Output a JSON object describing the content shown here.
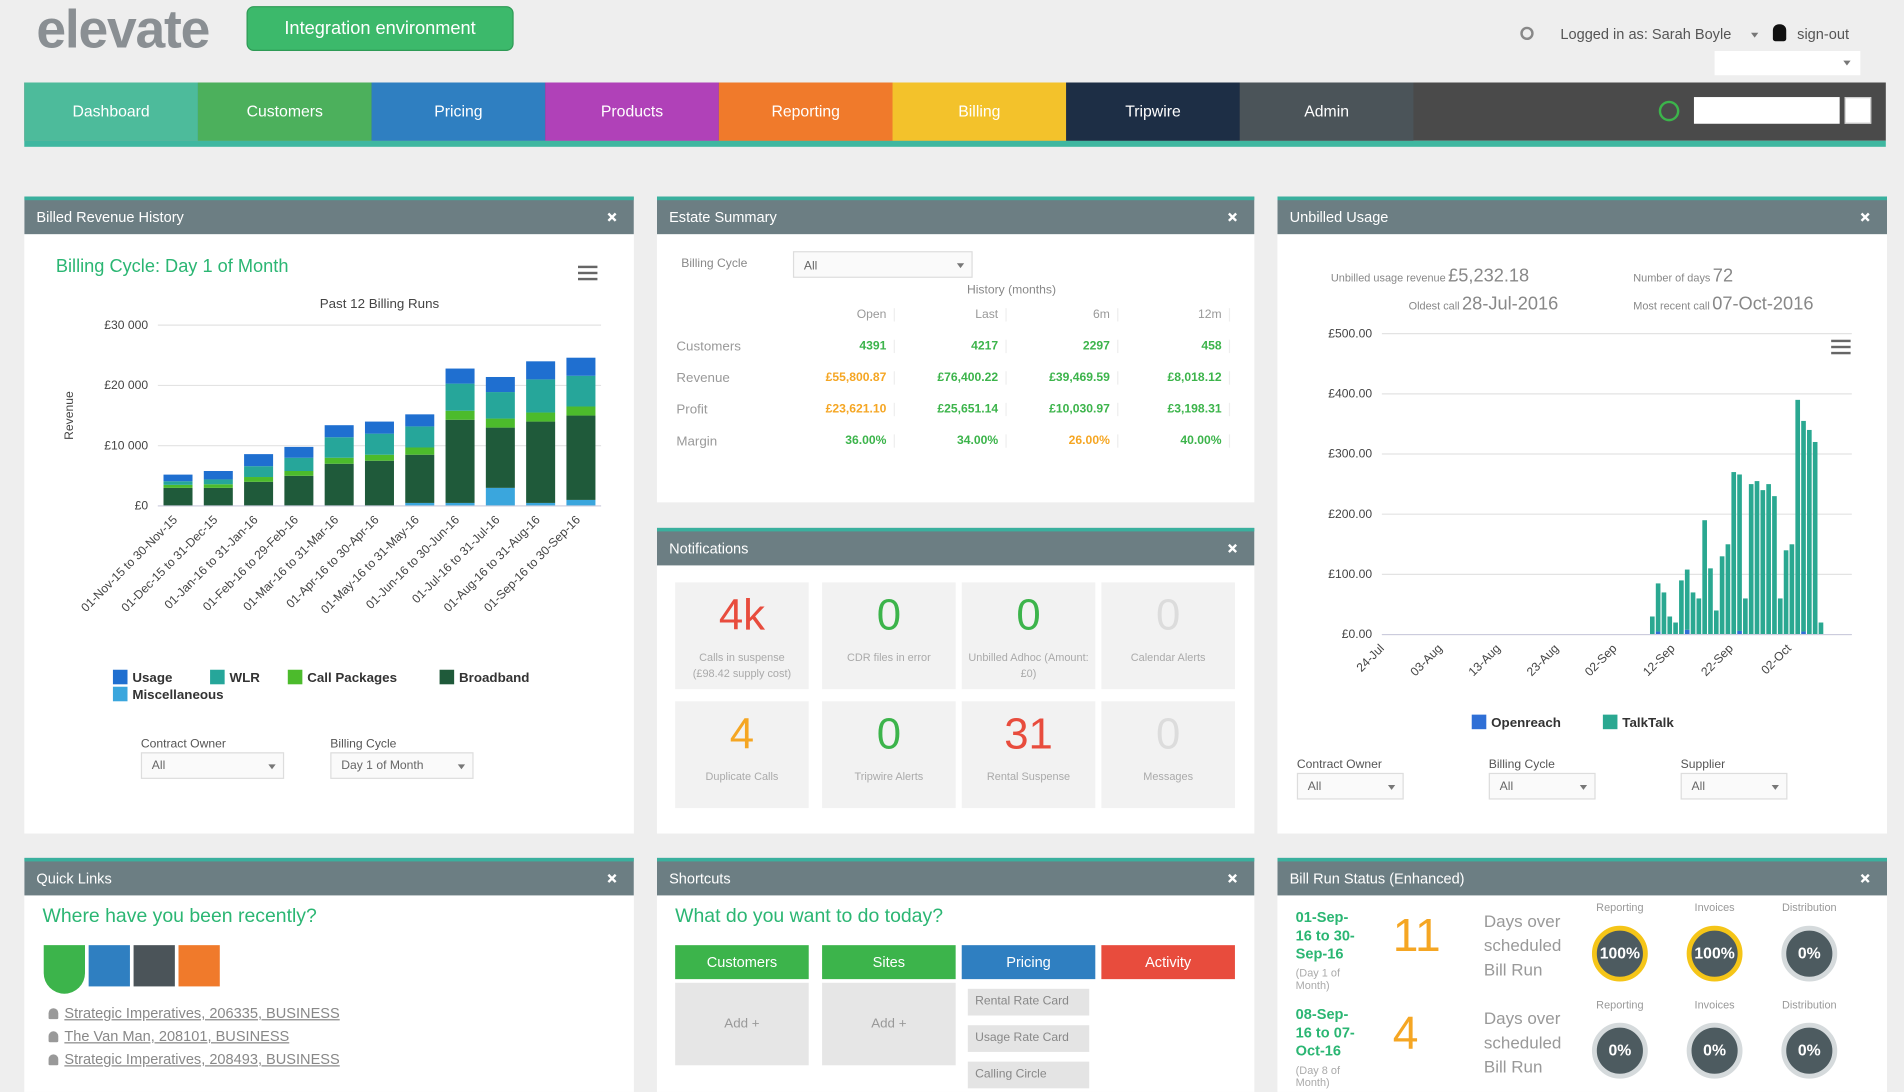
{
  "header": {
    "logo": "elevate",
    "environment": "Integration environment",
    "user": "Logged in as: Sarah Boyle",
    "signout": "sign-out"
  },
  "nav": [
    {
      "label": "Dashboard",
      "color": "#4dbb9b"
    },
    {
      "label": "Customers",
      "color": "#4cb05c"
    },
    {
      "label": "Pricing",
      "color": "#2f7fc1"
    },
    {
      "label": "Products",
      "color": "#b041b8"
    },
    {
      "label": "Reporting",
      "color": "#f07a2b"
    },
    {
      "label": "Billing",
      "color": "#f3c22b"
    },
    {
      "label": "Tripwire",
      "color": "#1d2e45"
    },
    {
      "label": "Admin",
      "color": "#4b5459"
    }
  ],
  "billed_revenue": {
    "title": "Billed Revenue History",
    "filters": [
      {
        "label": "Contract Owner",
        "value": "All"
      },
      {
        "label": "Billing Cycle",
        "value": "Day 1 of Month"
      }
    ]
  },
  "estate_summary": {
    "title": "Estate Summary",
    "filter": {
      "label": "Billing Cycle",
      "value": "All"
    },
    "group_label": "History (months)",
    "columns": [
      "Open",
      "Last",
      "6m",
      "12m"
    ],
    "rows": [
      {
        "label": "Customers",
        "cells": [
          4391,
          4217,
          2297,
          458
        ],
        "colors": [
          "#3cb44b",
          "#3cb44b",
          "#3cb44b",
          "#3cb44b"
        ]
      },
      {
        "label": "Revenue",
        "cells": [
          "£55,800.87",
          "£76,400.22",
          "£39,469.59",
          "£8,018.12"
        ],
        "colors": [
          "#f5a623",
          "#3cb44b",
          "#3cb44b",
          "#3cb44b"
        ]
      },
      {
        "label": "Profit",
        "cells": [
          "£23,621.10",
          "£25,651.14",
          "£10,030.97",
          "£3,198.31"
        ],
        "colors": [
          "#f5a623",
          "#3cb44b",
          "#3cb44b",
          "#3cb44b"
        ]
      },
      {
        "label": "Margin",
        "cells": [
          "36.00%",
          "34.00%",
          "26.00%",
          "40.00%"
        ],
        "colors": [
          "#3cb44b",
          "#3cb44b",
          "#f5a623",
          "#3cb44b"
        ]
      }
    ]
  },
  "notifications": {
    "title": "Notifications",
    "tiles": [
      {
        "value": "4k",
        "label": "Calls in suspense (£98.42 supply cost)",
        "color": "#e84c3d"
      },
      {
        "value": 0,
        "label": "CDR files in error",
        "color": "#3cb44b"
      },
      {
        "value": 0,
        "label": "Unbilled Adhoc (Amount: £0)",
        "color": "#3cb44b"
      },
      {
        "value": 0,
        "label": "Calendar Alerts",
        "color": "#dcdcdc"
      },
      {
        "value": 4,
        "label": "Duplicate Calls",
        "color": "#f5a623"
      },
      {
        "value": 0,
        "label": "Tripwire Alerts",
        "color": "#3cb44b"
      },
      {
        "value": 31,
        "label": "Rental Suspense",
        "color": "#e84c3d"
      },
      {
        "value": 0,
        "label": "Messages",
        "color": "#dcdcdc"
      }
    ]
  },
  "unbilled_usage": {
    "title": "Unbilled Usage",
    "stats": [
      {
        "label": "Unbilled usage revenue",
        "value": "£5,232.18"
      },
      {
        "label": "Oldest call",
        "value": "28-Jul-2016"
      },
      {
        "label": "Number of days",
        "value": 72
      },
      {
        "label": "Most recent call",
        "value": "07-Oct-2016"
      }
    ],
    "filters": [
      {
        "label": "Contract Owner",
        "value": "All"
      },
      {
        "label": "Billing Cycle",
        "value": "All"
      },
      {
        "label": "Supplier",
        "value": "All"
      }
    ]
  },
  "quick_links": {
    "title": "Quick Links",
    "question": "Where have you been recently?",
    "links": [
      "Strategic Imperatives, 206335, BUSINESS",
      "The Van Man, 208101, BUSINESS",
      "Strategic Imperatives, 208493, BUSINESS"
    ]
  },
  "shortcuts": {
    "title": "Shortcuts",
    "question": "What do you want to do today?",
    "columns": [
      {
        "label": "Customers",
        "color": "#3cb44b",
        "items": [
          "Add +"
        ]
      },
      {
        "label": "Sites",
        "color": "#3cb44b",
        "items": [
          "Add +"
        ]
      },
      {
        "label": "Pricing",
        "color": "#2f7fc1",
        "items": [
          "Rental Rate Card",
          "Usage Rate Card",
          "Calling Circle"
        ]
      },
      {
        "label": "Activity",
        "color": "#e84c3d",
        "items": []
      }
    ]
  },
  "bill_run_status": {
    "title": "Bill Run Status (Enhanced)",
    "rows": [
      {
        "period": "01-Sep-16 to 30-Sep-16",
        "cycle": "(Day 1 of Month)",
        "days": 11,
        "days_label": "Days over scheduled Bill Run",
        "stages": [
          {
            "label": "Reporting",
            "value": "100%",
            "ring": "#f5c518"
          },
          {
            "label": "Invoices",
            "value": "100%",
            "ring": "#f5c518"
          },
          {
            "label": "Distribution",
            "value": "0%",
            "ring": "#d5dadc"
          }
        ]
      },
      {
        "period": "08-Sep-16 to 07-Oct-16",
        "cycle": "(Day 8 of Month)",
        "days": 4,
        "days_label": "Days over scheduled Bill Run",
        "stages": [
          {
            "label": "Reporting",
            "value": "0%",
            "ring": "#d5dadc"
          },
          {
            "label": "Invoices",
            "value": "0%",
            "ring": "#d5dadc"
          },
          {
            "label": "Distribution",
            "value": "0%",
            "ring": "#d5dadc"
          }
        ]
      }
    ]
  },
  "chart_data": [
    {
      "type": "bar",
      "stacked": true,
      "title": "Billing Cycle: Day 1 of Month",
      "subtitle": "Past 12 Billing Runs",
      "y_label": "Revenue",
      "categories": [
        "01-Nov-15 to 30-Nov-15",
        "01-Dec-15 to 31-Dec-15",
        "01-Jan-16 to 31-Jan-16",
        "01-Feb-16 to 29-Feb-16",
        "01-Mar-16 to 31-Mar-16",
        "01-Apr-16 to 30-Apr-16",
        "01-May-16 to 31-May-16",
        "01-Jun-16 to 30-Jun-16",
        "01-Jul-16 to 31-Jul-16",
        "01-Aug-16 to 31-Aug-16",
        "01-Sep-16 to 30-Sep-16"
      ],
      "series": [
        {
          "name": "Usage",
          "color": "#1f6fd0",
          "values": [
            1100,
            1400,
            2000,
            1800,
            2000,
            2000,
            2000,
            2500,
            2500,
            3000,
            3000
          ]
        },
        {
          "name": "WLR",
          "color": "#26a69a",
          "values": [
            600,
            800,
            1800,
            2200,
            3400,
            3500,
            3500,
            4500,
            4400,
            5500,
            5100
          ]
        },
        {
          "name": "Call Packages",
          "color": "#4cbb2c",
          "values": [
            500,
            600,
            800,
            800,
            1000,
            1000,
            1200,
            1500,
            1500,
            1500,
            1500
          ]
        },
        {
          "name": "Broadband",
          "color": "#1f5a3a",
          "values": [
            3000,
            3000,
            4000,
            5000,
            7000,
            7500,
            8000,
            13800,
            10000,
            13500,
            14000
          ]
        },
        {
          "name": "Miscellaneous",
          "color": "#3aa6dd",
          "values": [
            0,
            0,
            0,
            0,
            0,
            0,
            500,
            500,
            3000,
            500,
            1000
          ]
        }
      ],
      "ylim": [
        0,
        30000
      ],
      "yticks": [
        {
          "value": 0,
          "label": "£0"
        },
        {
          "value": 10000,
          "label": "£10 000"
        },
        {
          "value": 20000,
          "label": "£20 000"
        },
        {
          "value": 30000,
          "label": "£30 000"
        }
      ],
      "grid": true
    },
    {
      "type": "bar",
      "stacked": true,
      "categories": [
        "24-Jul",
        null,
        null,
        null,
        null,
        null,
        null,
        null,
        null,
        null,
        "03-Aug",
        null,
        null,
        null,
        null,
        null,
        null,
        null,
        null,
        null,
        "13-Aug",
        null,
        null,
        null,
        null,
        null,
        null,
        null,
        null,
        null,
        "23-Aug",
        null,
        null,
        null,
        null,
        null,
        null,
        null,
        null,
        null,
        "02-Sep",
        null,
        null,
        null,
        null,
        null,
        null,
        null,
        null,
        null,
        "12-Sep",
        null,
        null,
        null,
        null,
        null,
        null,
        null,
        null,
        null,
        "22-Sep",
        null,
        null,
        null,
        null,
        null,
        null,
        null,
        null,
        null,
        "02-Oct",
        null,
        null,
        null,
        null,
        null
      ],
      "series": [
        {
          "name": "Openreach",
          "color": "#2f6fd6",
          "values": [
            null,
            null,
            null,
            null,
            null,
            null,
            null,
            null,
            null,
            null,
            null,
            null,
            null,
            null,
            null,
            null,
            null,
            null,
            null,
            null,
            null,
            null,
            null,
            null,
            null,
            null,
            null,
            null,
            null,
            null,
            null,
            null,
            null,
            null,
            null,
            null,
            null,
            null,
            null,
            null,
            null,
            null,
            null,
            null,
            null,
            null,
            null,
            5,
            null,
            null,
            null,
            null,
            8,
            null,
            null,
            null,
            null,
            null,
            null,
            null,
            null,
            6,
            null,
            null,
            null,
            null,
            null,
            null,
            null,
            null,
            null,
            null,
            5,
            null,
            null,
            null
          ]
        },
        {
          "name": "TalkTalk",
          "color": "#2aa891",
          "values": [
            null,
            null,
            null,
            null,
            null,
            null,
            null,
            null,
            null,
            null,
            null,
            null,
            null,
            null,
            null,
            null,
            null,
            null,
            null,
            null,
            null,
            null,
            null,
            null,
            null,
            null,
            null,
            null,
            null,
            null,
            null,
            null,
            null,
            null,
            null,
            null,
            null,
            null,
            null,
            null,
            null,
            null,
            null,
            null,
            null,
            null,
            30,
            80,
            70,
            30,
            20,
            90,
            100,
            70,
            60,
            190,
            110,
            40,
            130,
            150,
            270,
            260,
            60,
            250,
            255,
            240,
            250,
            230,
            60,
            140,
            150,
            390,
            350,
            340,
            320,
            20
          ]
        }
      ],
      "ylim": [
        0,
        500
      ],
      "yticks": [
        {
          "value": 0,
          "label": "£0.00"
        },
        {
          "value": 100,
          "label": "£100.00"
        },
        {
          "value": 200,
          "label": "£200.00"
        },
        {
          "value": 300,
          "label": "£300.00"
        },
        {
          "value": 400,
          "label": "£400.00"
        },
        {
          "value": 500,
          "label": "£500.00"
        }
      ],
      "grid": true
    }
  ]
}
